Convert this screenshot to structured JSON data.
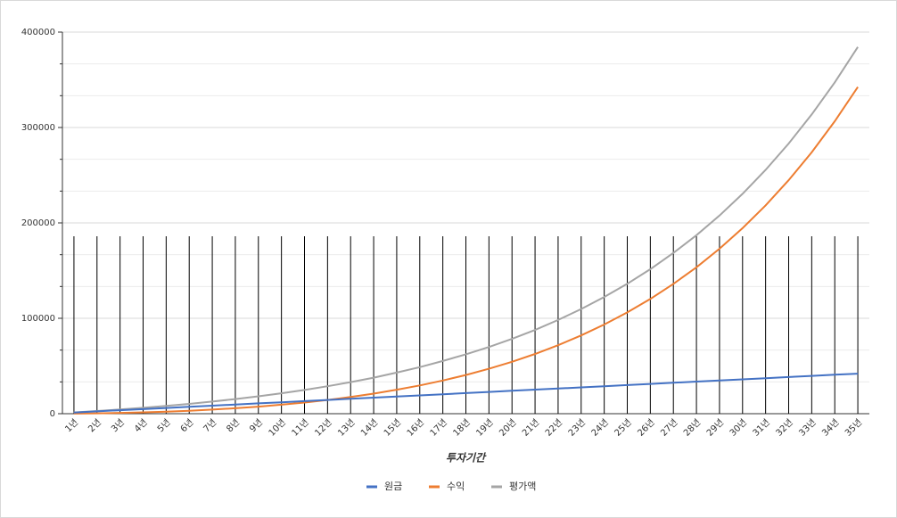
{
  "chart_data": {
    "type": "line",
    "x_label": "투자기간",
    "categories": [
      "1년",
      "2년",
      "3년",
      "4년",
      "5년",
      "6년",
      "7년",
      "8년",
      "9년",
      "10년",
      "11년",
      "12년",
      "13년",
      "14년",
      "15년",
      "16년",
      "17년",
      "18년",
      "19년",
      "20년",
      "21년",
      "22년",
      "23년",
      "24년",
      "25년",
      "26년",
      "27년",
      "28년",
      "29년",
      "30년",
      "31년",
      "32년",
      "33년",
      "34년",
      "35년"
    ],
    "series": [
      {
        "name": "원금",
        "color": "#4472c4",
        "values": [
          1200,
          2400,
          3600,
          4800,
          6000,
          7200,
          8400,
          9600,
          10800,
          12000,
          13200,
          14400,
          15600,
          16800,
          18000,
          19200,
          20400,
          21600,
          22800,
          24000,
          25200,
          26400,
          27600,
          28800,
          30000,
          31200,
          32400,
          33600,
          34800,
          36000,
          37200,
          38400,
          39600,
          40800,
          42000
        ]
      },
      {
        "name": "수익",
        "color": "#ed7d31",
        "values": [
          100,
          400,
          800,
          1400,
          2100,
          3100,
          4300,
          5700,
          7400,
          9400,
          11700,
          14400,
          17500,
          21000,
          25100,
          29600,
          34800,
          40600,
          47100,
          54400,
          62600,
          71800,
          82100,
          93500,
          106200,
          120300,
          136100,
          153500,
          172900,
          194500,
          218300,
          244800,
          274100,
          306500,
          342400
        ]
      },
      {
        "name": "평가액",
        "color": "#a5a5a5",
        "values": [
          1300,
          2800,
          4400,
          6200,
          8100,
          10300,
          12700,
          15300,
          18200,
          21400,
          24900,
          28800,
          33100,
          37800,
          43100,
          48800,
          55200,
          62200,
          69900,
          78400,
          87800,
          98200,
          109700,
          122300,
          136200,
          151500,
          168500,
          187100,
          207700,
          230500,
          255500,
          283200,
          313700,
          347300,
          384400
        ]
      }
    ],
    "ylim": [
      0,
      400000
    ],
    "yticks": [
      0,
      100000,
      200000,
      300000,
      400000
    ],
    "grid": true,
    "legend": "bottom"
  }
}
